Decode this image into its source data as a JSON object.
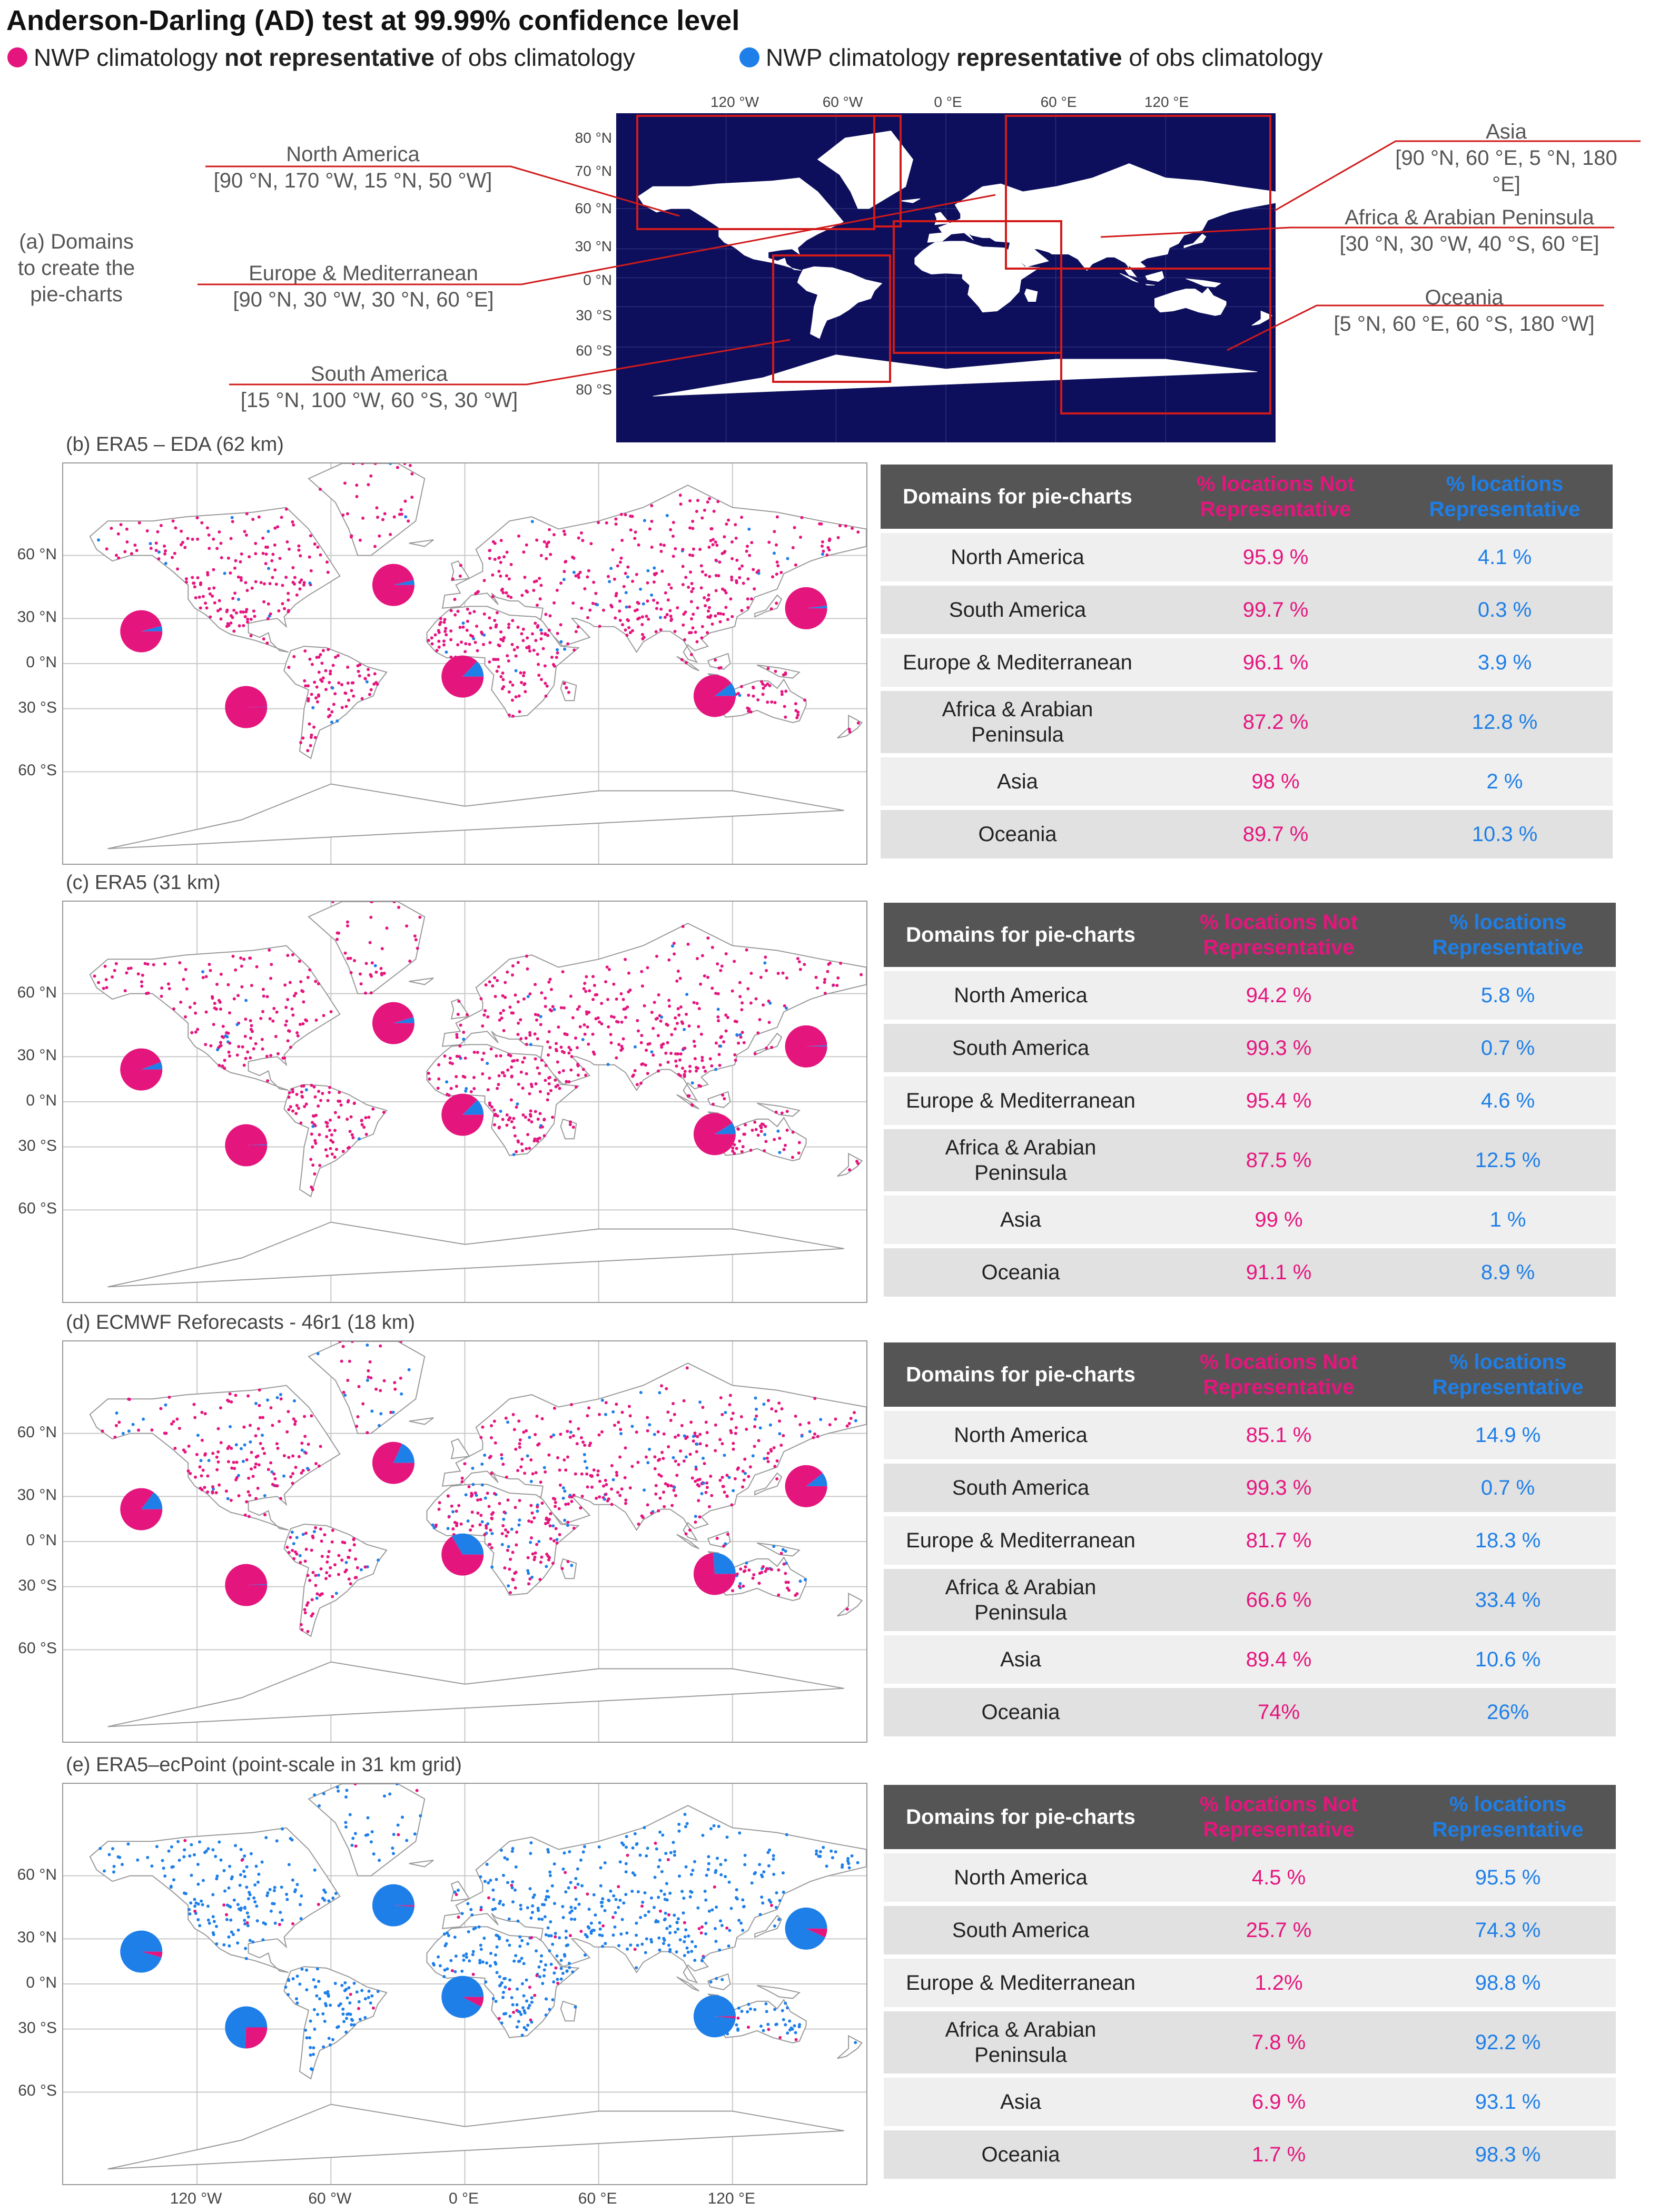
{
  "title": "Anderson-Darling (AD) test at 99.99% confidence level",
  "legend": {
    "not_rep_prefix": "NWP climatology ",
    "not_rep_bold": "not representative",
    "not_rep_suffix": " of obs climatology",
    "rep_prefix": "NWP climatology ",
    "rep_bold": "representative",
    "rep_suffix": " of obs climatology"
  },
  "colors": {
    "not_representative": "#e5157e",
    "representative": "#1e7fe8",
    "ocean": "#0d0f5c",
    "domain_box": "#d11a1a"
  },
  "domains_panel": {
    "label": "(a) Domains\nto create the\npie-charts",
    "top_lon_ticks": [
      "120 °W",
      "60 °W",
      "0 °E",
      "60 °E",
      "120 °E"
    ],
    "left_lat_ticks": [
      "80 °N",
      "70 °N",
      "60 °N",
      "30 °N",
      "0 °N",
      "30 °S",
      "60 °S",
      "80 °S"
    ],
    "domains": [
      {
        "name": "North America",
        "bounds": "[90 °N, 170 °W, 15 °N, 50 °W]"
      },
      {
        "name": "Europe & Mediterranean",
        "bounds": "[90 °N, 30 °W, 30 °N, 60 °E]"
      },
      {
        "name": "South America",
        "bounds": "[15 °N, 100 °W, 60 °S, 30 °W]"
      },
      {
        "name": "Asia",
        "bounds": "[90 °N, 60 °E, 5 °N, 180 °E]"
      },
      {
        "name": "Africa & Arabian Peninsula",
        "bounds": "[30 °N, 30 °W, 40 °S, 60 °E]"
      },
      {
        "name": "Oceania",
        "bounds": "[5 °N, 60 °E, 60 °S, 180 °W]"
      }
    ]
  },
  "map_axes": {
    "lat_ticks": [
      "60 °N",
      "30 °N",
      "0 °N",
      "30 °S",
      "60 °S"
    ],
    "lon_ticks": [
      "120 °W",
      "60 °W",
      "0 °E",
      "60 °E",
      "120 °E"
    ]
  },
  "table_headers": {
    "domain": "Domains for pie-charts",
    "not_rep_1": "% locations Not",
    "not_rep_2": "Representative",
    "rep_1": "% locations",
    "rep_2": "Representative"
  },
  "chart_data": [
    {
      "type": "pie",
      "title": "(b) ERA5 – EDA (62 km)",
      "domains": [
        "North America",
        "South America",
        "Europe & Mediterranean",
        "Africa & Arabian Peninsula",
        "Asia",
        "Oceania"
      ],
      "series": [
        {
          "name": "% locations Not Representative",
          "values": [
            95.9,
            99.7,
            96.1,
            87.2,
            98,
            89.7
          ],
          "labels": [
            "95.9 %",
            "99.7 %",
            "96.1 %",
            "87.2 %",
            "98 %",
            "89.7 %"
          ]
        },
        {
          "name": "% locations Representative",
          "values": [
            4.1,
            0.3,
            3.9,
            12.8,
            2,
            10.3
          ],
          "labels": [
            "4.1 %",
            "0.3 %",
            "3.9 %",
            "12.8 %",
            "2 %",
            "10.3 %"
          ]
        }
      ]
    },
    {
      "type": "pie",
      "title": "(c) ERA5 (31 km)",
      "domains": [
        "North America",
        "South America",
        "Europe & Mediterranean",
        "Africa & Arabian Peninsula",
        "Asia",
        "Oceania"
      ],
      "series": [
        {
          "name": "% locations Not Representative",
          "values": [
            94.2,
            99.3,
            95.4,
            87.5,
            99,
            91.1
          ],
          "labels": [
            "94.2 %",
            "99.3 %",
            "95.4 %",
            "87.5 %",
            "99 %",
            "91.1 %"
          ]
        },
        {
          "name": "% locations Representative",
          "values": [
            5.8,
            0.7,
            4.6,
            12.5,
            1,
            8.9
          ],
          "labels": [
            "5.8 %",
            "0.7 %",
            "4.6 %",
            "12.5 %",
            "1 %",
            "8.9 %"
          ]
        }
      ]
    },
    {
      "type": "pie",
      "title": "(d) ECMWF Reforecasts - 46r1 (18 km)",
      "domains": [
        "North America",
        "South America",
        "Europe & Mediterranean",
        "Africa & Arabian Peninsula",
        "Asia",
        "Oceania"
      ],
      "series": [
        {
          "name": "% locations Not Representative",
          "values": [
            85.1,
            99.3,
            81.7,
            66.6,
            89.4,
            74
          ],
          "labels": [
            "85.1 %",
            "99.3 %",
            "81.7 %",
            "66.6 %",
            "89.4 %",
            "74%"
          ]
        },
        {
          "name": "% locations Representative",
          "values": [
            14.9,
            0.7,
            18.3,
            33.4,
            10.6,
            26
          ],
          "labels": [
            "14.9 %",
            "0.7 %",
            "18.3 %",
            "33.4 %",
            "10.6 %",
            "26%"
          ]
        }
      ]
    },
    {
      "type": "pie",
      "title": "(e) ERA5–ecPoint (point-scale in 31 km grid)",
      "domains": [
        "North America",
        "South America",
        "Europe & Mediterranean",
        "Africa & Arabian Peninsula",
        "Asia",
        "Oceania"
      ],
      "series": [
        {
          "name": "% locations Not Representative",
          "values": [
            4.5,
            25.7,
            1.2,
            7.8,
            6.9,
            1.7
          ],
          "labels": [
            "4.5 %",
            "25.7 %",
            "1.2%",
            "7.8 %",
            "6.9 %",
            "1.7 %"
          ]
        },
        {
          "name": "% locations Representative",
          "values": [
            95.5,
            74.3,
            98.8,
            92.2,
            93.1,
            98.3
          ],
          "labels": [
            "95.5 %",
            "74.3 %",
            "98.8 %",
            "92.2 %",
            "93.1 %",
            "98.3 %"
          ]
        }
      ]
    }
  ]
}
